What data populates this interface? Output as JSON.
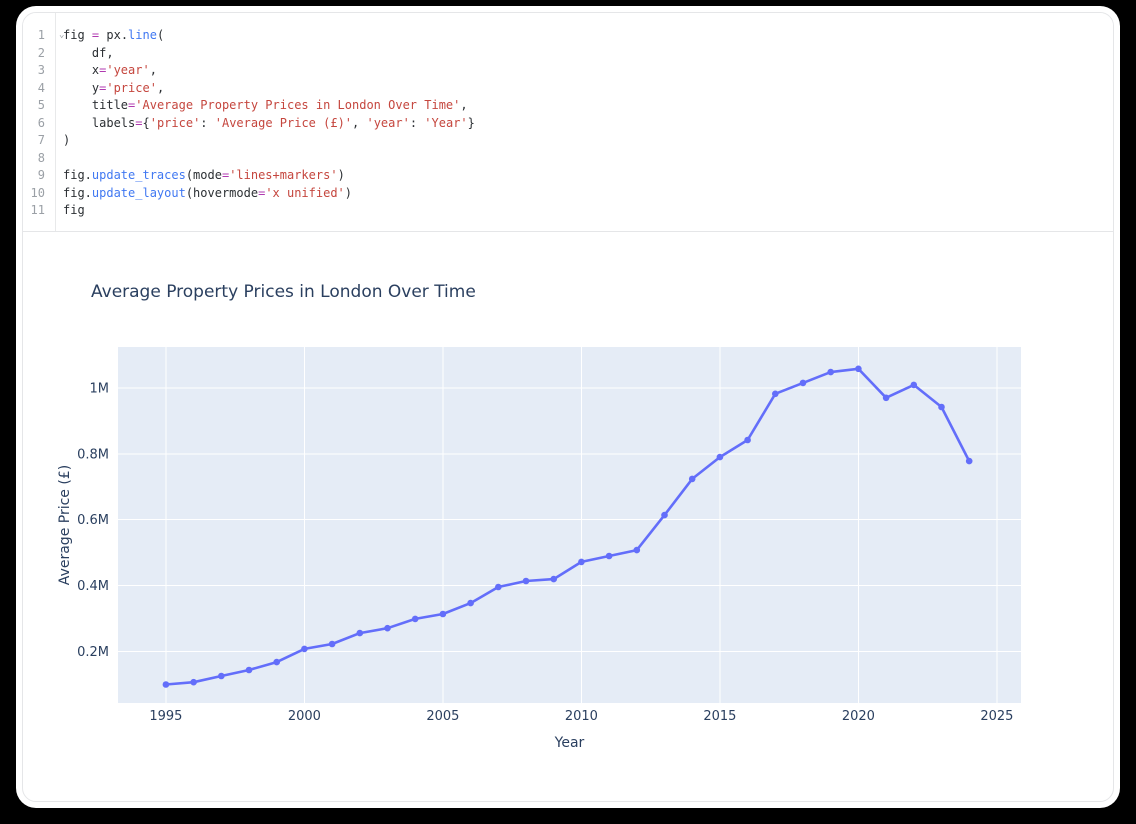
{
  "editor": {
    "lines": [
      {
        "n": 1,
        "fold": "⌄",
        "tokens": [
          [
            "fig ",
            "d"
          ],
          [
            "=",
            "o"
          ],
          [
            " px.",
            "d"
          ],
          [
            "line",
            "f"
          ],
          [
            "(",
            "d"
          ]
        ]
      },
      {
        "n": 2,
        "tokens": [
          [
            "    df,",
            "d"
          ]
        ]
      },
      {
        "n": 3,
        "tokens": [
          [
            "    x",
            "d"
          ],
          [
            "=",
            "o"
          ],
          [
            "'year'",
            "s"
          ],
          [
            ",",
            "d"
          ]
        ]
      },
      {
        "n": 4,
        "tokens": [
          [
            "    y",
            "d"
          ],
          [
            "=",
            "o"
          ],
          [
            "'price'",
            "s"
          ],
          [
            ",",
            "d"
          ]
        ]
      },
      {
        "n": 5,
        "tokens": [
          [
            "    title",
            "d"
          ],
          [
            "=",
            "o"
          ],
          [
            "'Average Property Prices in London Over Time'",
            "s"
          ],
          [
            ",",
            "d"
          ]
        ]
      },
      {
        "n": 6,
        "tokens": [
          [
            "    labels",
            "d"
          ],
          [
            "=",
            "o"
          ],
          [
            "{",
            "d"
          ],
          [
            "'price'",
            "s"
          ],
          [
            ": ",
            "d"
          ],
          [
            "'Average Price (£)'",
            "s"
          ],
          [
            ", ",
            "d"
          ],
          [
            "'year'",
            "s"
          ],
          [
            ": ",
            "d"
          ],
          [
            "'Year'",
            "s"
          ],
          [
            "}",
            "d"
          ]
        ]
      },
      {
        "n": 7,
        "tokens": [
          [
            ")",
            "d"
          ]
        ]
      },
      {
        "n": 8,
        "tokens": []
      },
      {
        "n": 9,
        "tokens": [
          [
            "fig.",
            "d"
          ],
          [
            "update_traces",
            "f"
          ],
          [
            "(mode",
            "d"
          ],
          [
            "=",
            "o"
          ],
          [
            "'lines+markers'",
            "s"
          ],
          [
            ")",
            "d"
          ]
        ]
      },
      {
        "n": 10,
        "tokens": [
          [
            "fig.",
            "d"
          ],
          [
            "update_layout",
            "f"
          ],
          [
            "(hovermode",
            "d"
          ],
          [
            "=",
            "o"
          ],
          [
            "'x unified'",
            "s"
          ],
          [
            ")",
            "d"
          ]
        ]
      },
      {
        "n": 11,
        "tokens": [
          [
            "fig",
            "d"
          ]
        ]
      }
    ]
  },
  "chart_data": {
    "type": "line",
    "title": "Average Property Prices in London Over Time",
    "xlabel": "Year",
    "ylabel": "Average Price (£)",
    "series_name": "price",
    "mode": "lines+markers",
    "x": [
      1995,
      1996,
      1997,
      1998,
      1999,
      2000,
      2001,
      2002,
      2003,
      2004,
      2005,
      2006,
      2007,
      2008,
      2009,
      2010,
      2011,
      2012,
      2013,
      2014,
      2015,
      2016,
      2017,
      2018,
      2019,
      2020,
      2021,
      2022,
      2023,
      2024
    ],
    "y": [
      100000,
      107000,
      126000,
      144000,
      168000,
      208000,
      223000,
      256000,
      271000,
      299000,
      314000,
      347000,
      396000,
      414000,
      420000,
      472000,
      490000,
      508000,
      614000,
      724000,
      790000,
      842000,
      982000,
      1015000,
      1048000,
      1058000,
      970000,
      1009000,
      942000,
      778000
    ],
    "xlim": [
      1993.27,
      2025.87
    ],
    "ylim": [
      44000,
      1124000
    ],
    "xticks": [
      1995,
      2000,
      2005,
      2010,
      2015,
      2020,
      2025
    ],
    "yticks": [
      {
        "v": 200000,
        "label": "0.2M"
      },
      {
        "v": 400000,
        "label": "0.4M"
      },
      {
        "v": 600000,
        "label": "0.6M"
      },
      {
        "v": 800000,
        "label": "0.8M"
      },
      {
        "v": 1000000,
        "label": "1M"
      }
    ],
    "grid": true,
    "legend": false,
    "line_color": "#636efa",
    "plot_bg": "#e5ecf6",
    "grid_color": "#ffffff",
    "text_color": "#2a3f5f"
  }
}
